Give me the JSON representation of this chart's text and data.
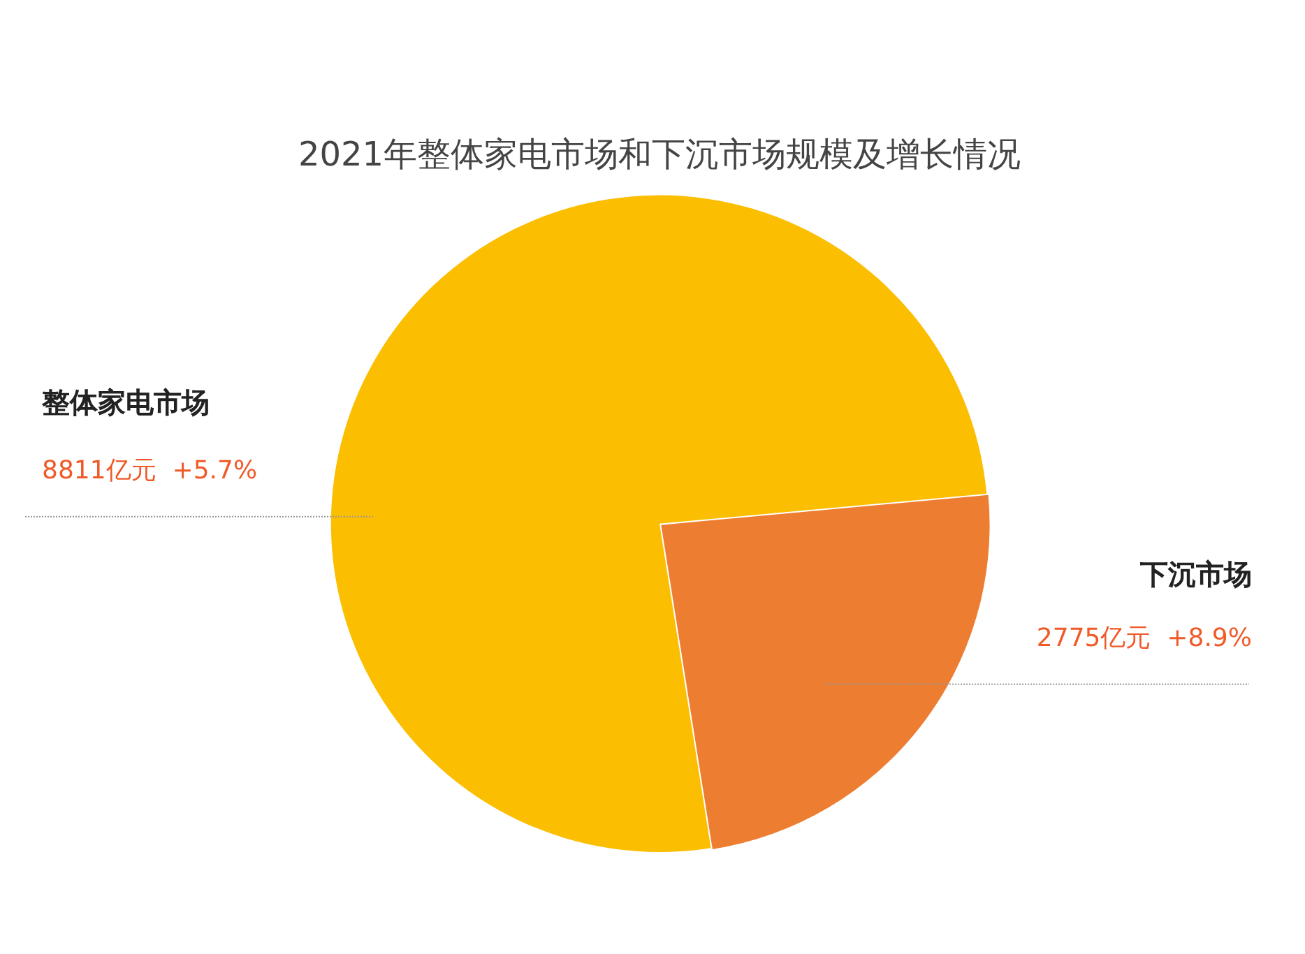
{
  "chart_data": {
    "type": "pie",
    "title": "2021年整体家电市场和下沉市场规模及增长情况",
    "categories": [
      "整体家电市场",
      "下沉市场"
    ],
    "values": [
      8811,
      2775
    ],
    "colors": [
      "#fbbe00",
      "#ed7d31"
    ],
    "value_labels": [
      "8811亿元  +5.7%",
      "2775亿元  +8.9%"
    ],
    "legend": false
  }
}
